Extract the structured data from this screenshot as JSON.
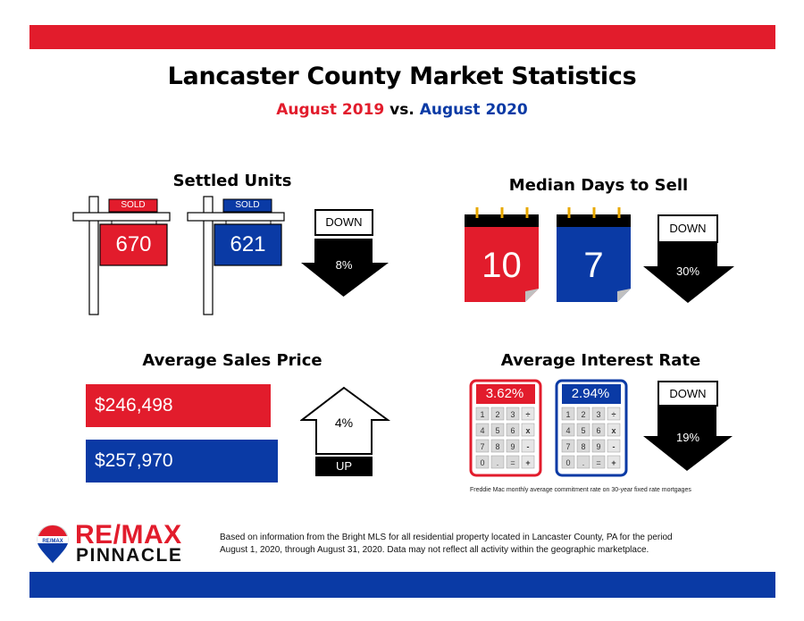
{
  "header": {
    "title": "Lancaster County Market Statistics",
    "subtitle_a": "August 2019",
    "subtitle_vs": " vs. ",
    "subtitle_b": "August 2020"
  },
  "colors": {
    "red": "#e21c2c",
    "blue": "#0a3aa5"
  },
  "settled_units": {
    "title": "Settled Units",
    "sign_label_2019": "SOLD",
    "sign_label_2020": "SOLD",
    "value_2019": "670",
    "value_2020": "621",
    "direction": "DOWN",
    "change": "8%"
  },
  "median_days": {
    "title": "Median Days to Sell",
    "value_2019": "10",
    "value_2020": "7",
    "direction": "DOWN",
    "change": "30%"
  },
  "avg_price": {
    "title": "Average Sales Price",
    "value_2019": "$246,498",
    "value_2020": "$257,970",
    "direction": "UP",
    "change": "4%"
  },
  "interest": {
    "title": "Average Interest Rate",
    "value_2019": "3.62%",
    "value_2020": "2.94%",
    "direction": "DOWN",
    "change": "19%",
    "note": "Freddie Mac monthly average commitment rate on 30-year fixed rate mortgages",
    "keys": [
      "1",
      "2",
      "3",
      "÷",
      "4",
      "5",
      "6",
      "x",
      "7",
      "8",
      "9",
      "-",
      "0",
      ".",
      "=",
      "+"
    ]
  },
  "footer": {
    "logo_top": "RE/MAX",
    "logo_bottom": "PINNACLE",
    "balloon_text": "RE/MAX",
    "disclaimer_line1": "Based on information from the Bright MLS for all residential property located in Lancaster County, PA for the period",
    "disclaimer_line2": "August 1, 2020, through August 31, 2020.  Data may not reflect all activity within the geographic marketplace."
  }
}
